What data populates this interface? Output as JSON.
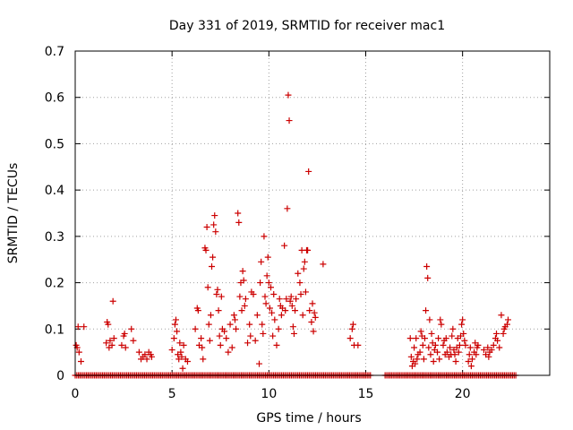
{
  "chart_data": {
    "type": "scatter",
    "title": "Day 331 of 2019, SRMTID for receiver mac1",
    "xlabel": "GPS time / hours",
    "ylabel": "SRMTID / TECUs",
    "xlim": [
      0,
      24.5
    ],
    "ylim": [
      0,
      0.7
    ],
    "xticks": [
      0,
      5,
      10,
      15,
      20
    ],
    "yticks": [
      0,
      0.1,
      0.2,
      0.3,
      0.4,
      0.5,
      0.6,
      0.7
    ],
    "xtick_labels": [
      "0",
      "5",
      "10",
      "15",
      "20"
    ],
    "ytick_labels": [
      "0",
      "0.1",
      "0.2",
      "0.3",
      "0.4",
      "0.5",
      "0.6",
      "0.7"
    ],
    "grid": true,
    "marker": "+",
    "marker_color": "#cc0000",
    "series": [
      {
        "name": "SRMTID",
        "points": [
          [
            0.05,
            0.065
          ],
          [
            0.1,
            0.06
          ],
          [
            0.15,
            0.105
          ],
          [
            0.2,
            0.05
          ],
          [
            0.3,
            0.03
          ],
          [
            0.45,
            0.105
          ],
          [
            1.6,
            0.07
          ],
          [
            1.65,
            0.115
          ],
          [
            1.7,
            0.11
          ],
          [
            1.75,
            0.06
          ],
          [
            1.8,
            0.075
          ],
          [
            1.9,
            0.065
          ],
          [
            1.95,
            0.16
          ],
          [
            2.0,
            0.08
          ],
          [
            2.4,
            0.065
          ],
          [
            2.5,
            0.085
          ],
          [
            2.55,
            0.09
          ],
          [
            2.6,
            0.06
          ],
          [
            2.9,
            0.1
          ],
          [
            3.0,
            0.075
          ],
          [
            3.3,
            0.05
          ],
          [
            3.4,
            0.035
          ],
          [
            3.5,
            0.04
          ],
          [
            3.6,
            0.045
          ],
          [
            3.7,
            0.035
          ],
          [
            3.8,
            0.05
          ],
          [
            3.9,
            0.045
          ],
          [
            3.95,
            0.04
          ],
          [
            5.0,
            0.055
          ],
          [
            5.1,
            0.08
          ],
          [
            5.15,
            0.11
          ],
          [
            5.2,
            0.12
          ],
          [
            5.25,
            0.095
          ],
          [
            5.3,
            0.045
          ],
          [
            5.35,
            0.035
          ],
          [
            5.4,
            0.07
          ],
          [
            5.45,
            0.05
          ],
          [
            5.5,
            0.04
          ],
          [
            5.55,
            0.015
          ],
          [
            5.6,
            0.065
          ],
          [
            5.7,
            0.035
          ],
          [
            5.8,
            0.03
          ],
          [
            6.2,
            0.1
          ],
          [
            6.3,
            0.145
          ],
          [
            6.35,
            0.14
          ],
          [
            6.4,
            0.065
          ],
          [
            6.5,
            0.08
          ],
          [
            6.55,
            0.06
          ],
          [
            6.6,
            0.035
          ],
          [
            6.7,
            0.275
          ],
          [
            6.75,
            0.27
          ],
          [
            6.8,
            0.32
          ],
          [
            6.85,
            0.19
          ],
          [
            6.9,
            0.11
          ],
          [
            6.95,
            0.075
          ],
          [
            7.0,
            0.13
          ],
          [
            7.05,
            0.235
          ],
          [
            7.1,
            0.255
          ],
          [
            7.15,
            0.325
          ],
          [
            7.2,
            0.345
          ],
          [
            7.25,
            0.31
          ],
          [
            7.3,
            0.175
          ],
          [
            7.35,
            0.185
          ],
          [
            7.4,
            0.14
          ],
          [
            7.45,
            0.085
          ],
          [
            7.5,
            0.065
          ],
          [
            7.55,
            0.17
          ],
          [
            7.6,
            0.1
          ],
          [
            7.7,
            0.095
          ],
          [
            7.8,
            0.08
          ],
          [
            7.9,
            0.05
          ],
          [
            8.0,
            0.11
          ],
          [
            8.1,
            0.06
          ],
          [
            8.2,
            0.13
          ],
          [
            8.25,
            0.12
          ],
          [
            8.3,
            0.1
          ],
          [
            8.4,
            0.35
          ],
          [
            8.45,
            0.33
          ],
          [
            8.5,
            0.17
          ],
          [
            8.55,
            0.2
          ],
          [
            8.6,
            0.14
          ],
          [
            8.65,
            0.225
          ],
          [
            8.7,
            0.205
          ],
          [
            8.75,
            0.15
          ],
          [
            8.8,
            0.165
          ],
          [
            8.9,
            0.07
          ],
          [
            9.0,
            0.11
          ],
          [
            9.05,
            0.085
          ],
          [
            9.1,
            0.18
          ],
          [
            9.2,
            0.175
          ],
          [
            9.3,
            0.075
          ],
          [
            9.4,
            0.13
          ],
          [
            9.5,
            0.025
          ],
          [
            9.55,
            0.2
          ],
          [
            9.6,
            0.245
          ],
          [
            9.65,
            0.11
          ],
          [
            9.7,
            0.09
          ],
          [
            9.75,
            0.3
          ],
          [
            9.8,
            0.17
          ],
          [
            9.85,
            0.155
          ],
          [
            9.9,
            0.215
          ],
          [
            9.95,
            0.255
          ],
          [
            10.0,
            0.2
          ],
          [
            10.05,
            0.145
          ],
          [
            10.1,
            0.19
          ],
          [
            10.15,
            0.135
          ],
          [
            10.2,
            0.085
          ],
          [
            10.25,
            0.175
          ],
          [
            10.3,
            0.12
          ],
          [
            10.4,
            0.065
          ],
          [
            10.5,
            0.1
          ],
          [
            10.55,
            0.165
          ],
          [
            10.6,
            0.15
          ],
          [
            10.65,
            0.13
          ],
          [
            10.7,
            0.145
          ],
          [
            10.8,
            0.28
          ],
          [
            10.85,
            0.14
          ],
          [
            10.9,
            0.165
          ],
          [
            10.95,
            0.36
          ],
          [
            11.0,
            0.605
          ],
          [
            11.05,
            0.55
          ],
          [
            11.1,
            0.16
          ],
          [
            11.15,
            0.17
          ],
          [
            11.2,
            0.15
          ],
          [
            11.25,
            0.105
          ],
          [
            11.3,
            0.09
          ],
          [
            11.35,
            0.14
          ],
          [
            11.4,
            0.165
          ],
          [
            11.5,
            0.22
          ],
          [
            11.6,
            0.2
          ],
          [
            11.65,
            0.175
          ],
          [
            11.7,
            0.27
          ],
          [
            11.75,
            0.13
          ],
          [
            11.8,
            0.23
          ],
          [
            11.85,
            0.245
          ],
          [
            11.9,
            0.18
          ],
          [
            11.95,
            0.27
          ],
          [
            12.0,
            0.27
          ],
          [
            12.05,
            0.44
          ],
          [
            12.1,
            0.14
          ],
          [
            12.2,
            0.115
          ],
          [
            12.25,
            0.155
          ],
          [
            12.3,
            0.095
          ],
          [
            12.35,
            0.135
          ],
          [
            12.4,
            0.125
          ],
          [
            12.8,
            0.24
          ],
          [
            14.2,
            0.08
          ],
          [
            14.3,
            0.1
          ],
          [
            14.35,
            0.11
          ],
          [
            14.4,
            0.065
          ],
          [
            14.6,
            0.065
          ],
          [
            17.3,
            0.08
          ],
          [
            17.35,
            0.04
          ],
          [
            17.4,
            0.02
          ],
          [
            17.45,
            0.03
          ],
          [
            17.5,
            0.06
          ],
          [
            17.55,
            0.025
          ],
          [
            17.6,
            0.08
          ],
          [
            17.65,
            0.035
          ],
          [
            17.7,
            0.045
          ],
          [
            17.8,
            0.05
          ],
          [
            17.85,
            0.095
          ],
          [
            17.9,
            0.085
          ],
          [
            17.95,
            0.065
          ],
          [
            18.0,
            0.035
          ],
          [
            18.05,
            0.08
          ],
          [
            18.1,
            0.14
          ],
          [
            18.15,
            0.235
          ],
          [
            18.2,
            0.21
          ],
          [
            18.25,
            0.06
          ],
          [
            18.3,
            0.12
          ],
          [
            18.35,
            0.045
          ],
          [
            18.4,
            0.09
          ],
          [
            18.45,
            0.07
          ],
          [
            18.5,
            0.03
          ],
          [
            18.55,
            0.055
          ],
          [
            18.6,
            0.065
          ],
          [
            18.7,
            0.05
          ],
          [
            18.75,
            0.08
          ],
          [
            18.8,
            0.035
          ],
          [
            18.85,
            0.12
          ],
          [
            18.9,
            0.11
          ],
          [
            19.0,
            0.065
          ],
          [
            19.05,
            0.075
          ],
          [
            19.1,
            0.045
          ],
          [
            19.15,
            0.08
          ],
          [
            19.2,
            0.05
          ],
          [
            19.3,
            0.04
          ],
          [
            19.35,
            0.06
          ],
          [
            19.4,
            0.045
          ],
          [
            19.45,
            0.085
          ],
          [
            19.5,
            0.1
          ],
          [
            19.55,
            0.055
          ],
          [
            19.6,
            0.045
          ],
          [
            19.65,
            0.03
          ],
          [
            19.7,
            0.06
          ],
          [
            19.75,
            0.08
          ],
          [
            19.8,
            0.05
          ],
          [
            19.85,
            0.065
          ],
          [
            19.9,
            0.085
          ],
          [
            19.95,
            0.11
          ],
          [
            20.0,
            0.12
          ],
          [
            20.05,
            0.09
          ],
          [
            20.1,
            0.075
          ],
          [
            20.15,
            0.065
          ],
          [
            20.3,
            0.03
          ],
          [
            20.35,
            0.045
          ],
          [
            20.4,
            0.06
          ],
          [
            20.45,
            0.02
          ],
          [
            20.5,
            0.035
          ],
          [
            20.6,
            0.05
          ],
          [
            20.65,
            0.07
          ],
          [
            20.7,
            0.045
          ],
          [
            20.75,
            0.06
          ],
          [
            20.8,
            0.065
          ],
          [
            21.1,
            0.055
          ],
          [
            21.2,
            0.045
          ],
          [
            21.3,
            0.06
          ],
          [
            21.35,
            0.04
          ],
          [
            21.4,
            0.05
          ],
          [
            21.5,
            0.055
          ],
          [
            21.6,
            0.065
          ],
          [
            21.7,
            0.08
          ],
          [
            21.75,
            0.09
          ],
          [
            21.8,
            0.075
          ],
          [
            21.9,
            0.06
          ],
          [
            22.0,
            0.13
          ],
          [
            22.1,
            0.09
          ],
          [
            22.15,
            0.1
          ],
          [
            22.2,
            0.105
          ],
          [
            22.3,
            0.11
          ],
          [
            22.35,
            0.12
          ]
        ],
        "zero_ranges": [
          [
            0.0,
            15.25
          ],
          [
            16.0,
            22.8
          ]
        ]
      }
    ]
  }
}
